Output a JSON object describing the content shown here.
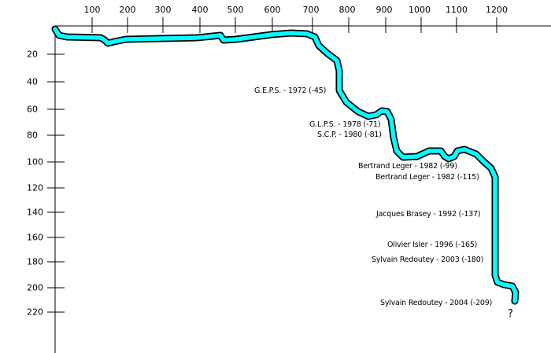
{
  "axes": {
    "x_ticks": [
      "100",
      "200",
      "300",
      "400",
      "500",
      "600",
      "700",
      "800",
      "900",
      "1000",
      "1100",
      "1200"
    ],
    "y_ticks": [
      "20",
      "40",
      "60",
      "80",
      "100",
      "120",
      "140",
      "160",
      "180",
      "200",
      "220"
    ]
  },
  "colors": {
    "passage_fill": "#00ffff",
    "passage_outline": "#000000"
  },
  "annotations": [
    "G.E.P.S. - 1972 (-45)",
    "G.L.P.S. - 1978 (-71)",
    "S.C.P. - 1980 (-81)",
    "Bertrand Leger - 1982 (-99)",
    "Bertrand Leger - 1982 (-115)",
    "Jacques Brasey - 1992 (-137)",
    "Olivier Isler - 1996 (-165)",
    "Sylvain Redoutey - 2003 (-180)",
    "Sylvain Redoutey - 2004 (-209)"
  ],
  "end_marker": "?"
}
